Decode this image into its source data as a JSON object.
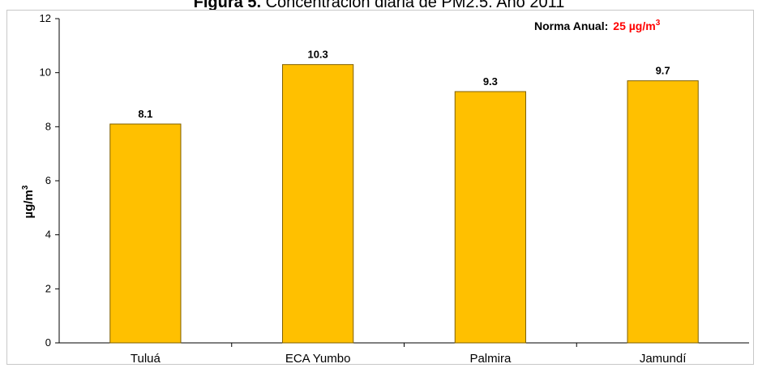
{
  "title": {
    "prefix": "Figura 5.",
    "text": "Concentración diaria de PM2.5. Año 2011"
  },
  "norma": {
    "label": "Norma Anual:",
    "value": "25 µg/m",
    "value_sup": "3",
    "label_color": "#000000",
    "value_color": "#ff0000"
  },
  "chart_data": {
    "type": "bar",
    "categories": [
      "Tuluá",
      "ECA Yumbo",
      "Palmira",
      "Jamundí"
    ],
    "values": [
      8.1,
      10.3,
      9.3,
      9.7
    ],
    "data_labels": [
      "8.1",
      "10.3",
      "9.3",
      "9.7"
    ],
    "ylabel": "µg/m",
    "ylabel_sup": "3",
    "xlabel": "",
    "ylim": [
      0,
      12
    ],
    "yticks": [
      0,
      2,
      4,
      6,
      8,
      10,
      12
    ],
    "grid": false,
    "bar_color": "#ffc000",
    "bar_stroke": "#7f6000"
  }
}
